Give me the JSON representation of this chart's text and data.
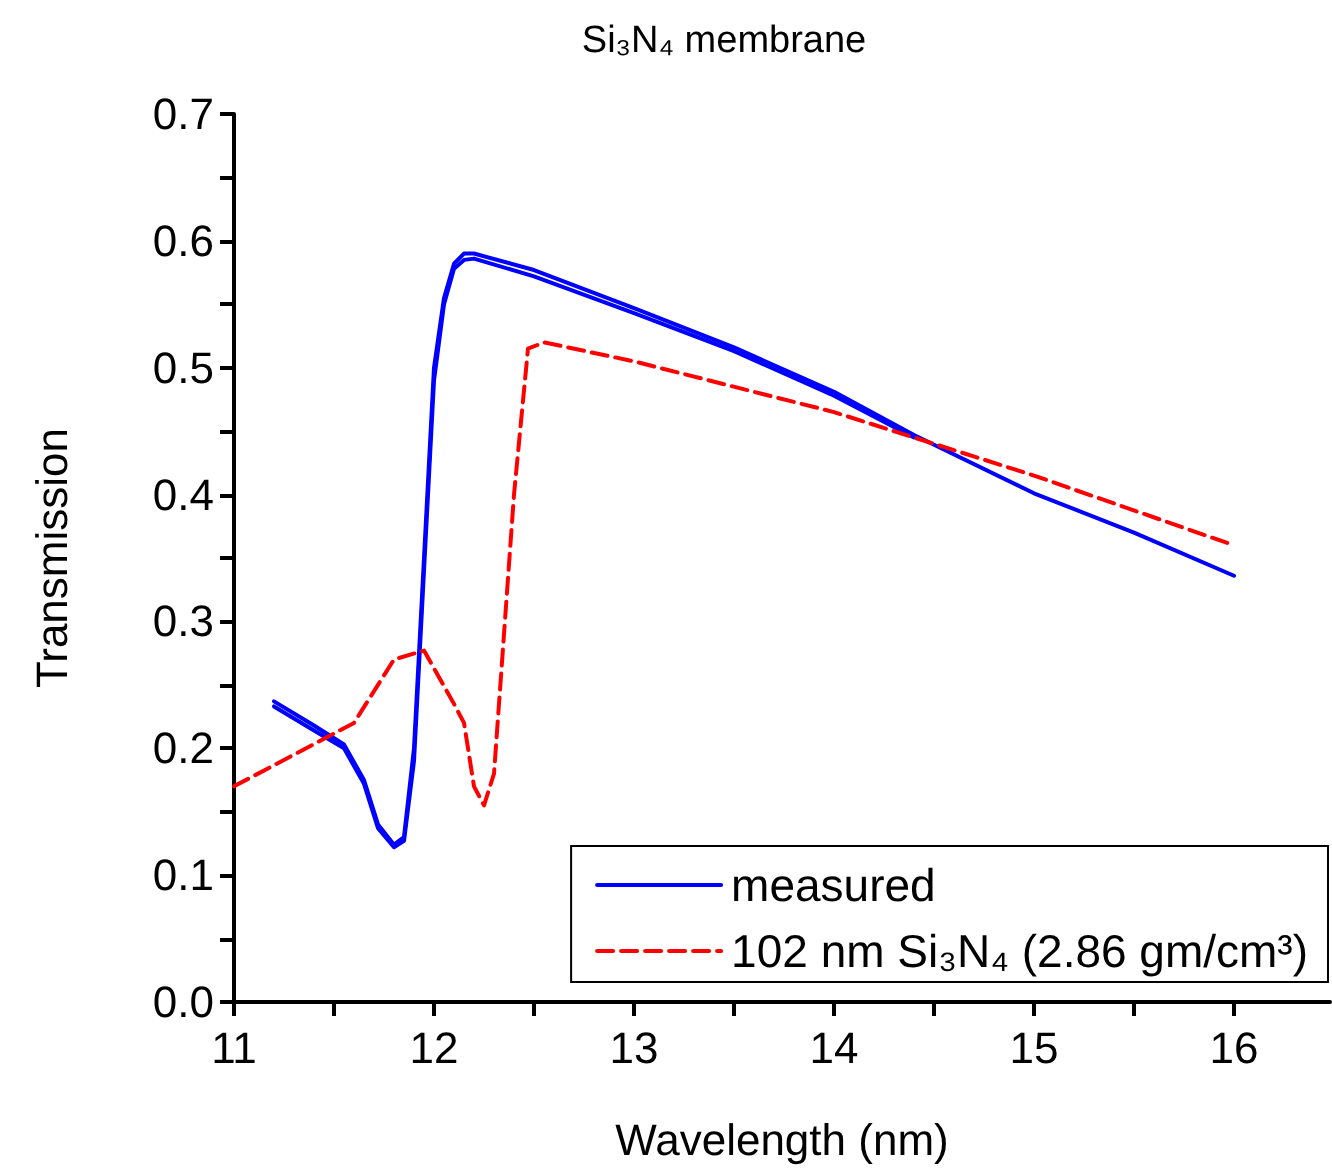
{
  "chart_data": {
    "type": "line",
    "title": "Si₃N₄ membrane",
    "xlabel": "Wavelength (nm)",
    "ylabel": "Transmission",
    "xlim": [
      11,
      16.48
    ],
    "xticks": [
      11,
      12,
      13,
      14,
      15,
      16
    ],
    "ylim": [
      0,
      0.7
    ],
    "yticks": [
      {
        "value": 0,
        "label": "0.0"
      },
      {
        "value": 0.1,
        "label": "0.1"
      },
      {
        "value": 0.2,
        "label": "0.2"
      },
      {
        "value": 0.3,
        "label": "0.3"
      },
      {
        "value": 0.4,
        "label": "0.4"
      },
      {
        "value": 0.5,
        "label": "0.5"
      },
      {
        "value": 0.6,
        "label": "0.6"
      },
      {
        "value": 0.7,
        "label": "0.7"
      }
    ],
    "grid": false,
    "legend": "bottom right",
    "marker": "none",
    "series": [
      {
        "name": "measured",
        "color": "#0000ff",
        "line_style": "solid",
        "x": [
          11.2,
          11.4,
          11.55,
          11.65,
          11.72,
          11.8,
          11.85,
          11.9,
          11.95,
          12.0,
          12.05,
          12.1,
          12.15,
          12.2,
          12.5,
          13,
          13.5,
          14,
          14.4,
          15,
          15.5,
          16
        ],
        "values": [
          0.237,
          0.218,
          0.203,
          0.175,
          0.14,
          0.124,
          0.13,
          0.2,
          0.35,
          0.5,
          0.555,
          0.582,
          0.59,
          0.59,
          0.577,
          0.547,
          0.516,
          0.481,
          0.447,
          0.401,
          0.37,
          0.336
        ]
      },
      {
        "color": "#0000ff",
        "line_style": "solid",
        "x": [
          11.2,
          11.4,
          11.55,
          11.65,
          11.72,
          11.8,
          11.85,
          11.9,
          11.95,
          12.0,
          12.05,
          12.1,
          12.15,
          12.2,
          12.5,
          13,
          13.5,
          14,
          14.4
        ],
        "values": [
          0.233,
          0.214,
          0.2,
          0.172,
          0.137,
          0.122,
          0.127,
          0.19,
          0.34,
          0.49,
          0.55,
          0.578,
          0.585,
          0.586,
          0.572,
          0.543,
          0.513,
          0.478,
          0.445
        ]
      },
      {
        "name": "102 nm Si₃N₄ (2.86 gm/cm³)",
        "color": "#ff0000",
        "line_style": "dashed",
        "x": [
          11,
          11.3,
          11.6,
          11.8,
          11.95,
          12.1,
          12.15,
          12.2,
          12.25,
          12.3,
          12.4,
          12.47,
          12.55,
          13,
          14,
          14.4,
          15,
          16
        ],
        "values": [
          0.17,
          0.195,
          0.22,
          0.27,
          0.277,
          0.235,
          0.22,
          0.17,
          0.155,
          0.18,
          0.4,
          0.515,
          0.52,
          0.505,
          0.465,
          0.445,
          0.415,
          0.36
        ]
      }
    ]
  }
}
